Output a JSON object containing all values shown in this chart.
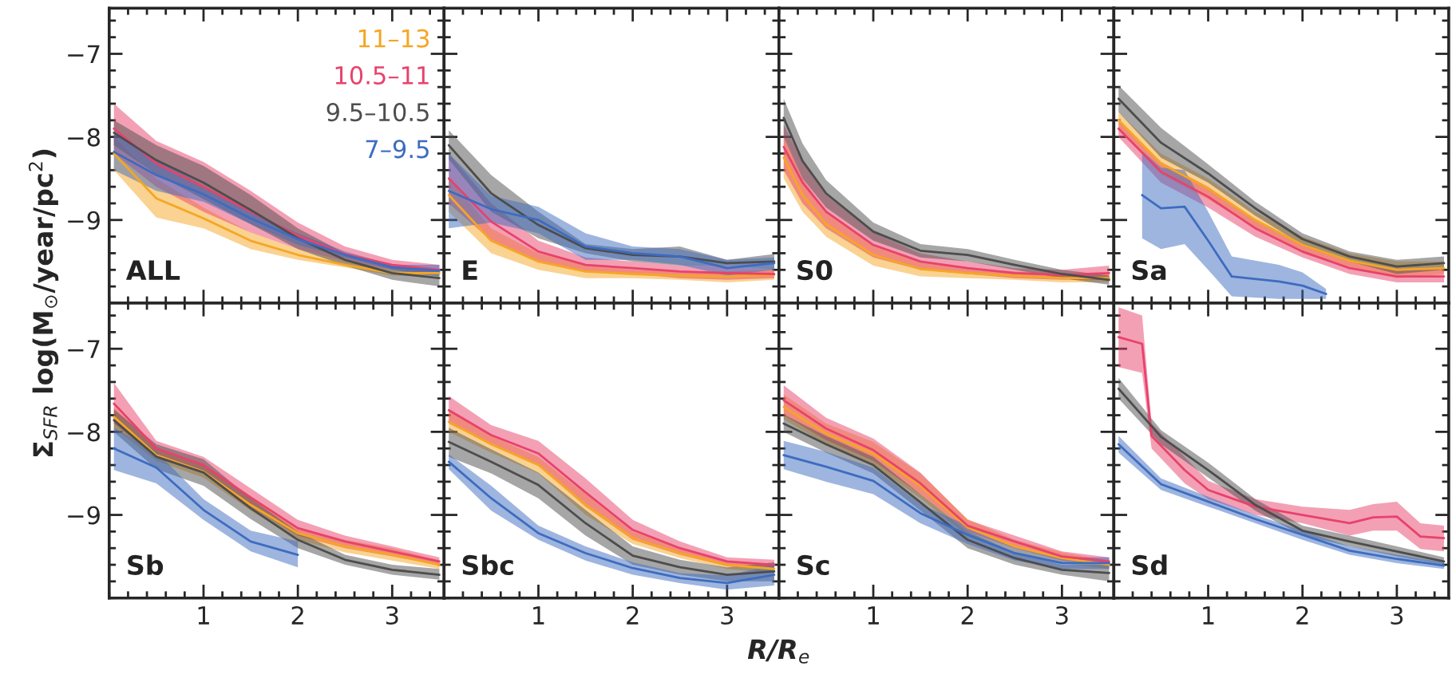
{
  "chart_data": [
    {
      "type": "line",
      "title": "ALL",
      "ylabel": "Σ$_{SFR}$ log(M$_{⊙}$/year/pc$^{2}$)",
      "legend": "top right",
      "xlim": [
        0,
        3.55
      ],
      "ylim": [
        -10.0,
        -6.45
      ],
      "xticks": [
        1,
        2,
        3
      ],
      "yticks": [
        {
          "value": -7,
          "label": "−7"
        },
        {
          "value": -8,
          "label": "−8"
        },
        {
          "value": -9,
          "label": "−9"
        }
      ],
      "tick_labels": "y",
      "series": [
        {
          "name": "11–13",
          "color": "#f5a623",
          "x": [
            0.05,
            0.5,
            1,
            1.5,
            2,
            2.5,
            3,
            3.5
          ],
          "values": [
            -8.2,
            -8.74,
            -8.98,
            -9.25,
            -9.42,
            -9.54,
            -9.64,
            -9.64
          ],
          "lower": [
            -8.4,
            -8.97,
            -9.1,
            -9.35,
            -9.48,
            -9.57,
            -9.67,
            -9.67
          ],
          "upper": [
            -8.0,
            -8.5,
            -8.85,
            -9.15,
            -9.35,
            -9.5,
            -9.6,
            -9.6
          ]
        },
        {
          "name": "10.5–11",
          "color": "#e8426b",
          "x": [
            0.05,
            0.5,
            1,
            1.5,
            2,
            2.5,
            3,
            3.5
          ],
          "values": [
            -7.9,
            -8.32,
            -8.6,
            -8.9,
            -9.19,
            -9.41,
            -9.54,
            -9.6
          ],
          "lower": [
            -8.2,
            -8.6,
            -8.9,
            -9.15,
            -9.35,
            -9.5,
            -9.6,
            -9.65
          ],
          "upper": [
            -7.6,
            -8.05,
            -8.3,
            -8.65,
            -9.03,
            -9.32,
            -9.48,
            -9.54
          ]
        },
        {
          "name": "9.5–10.5",
          "color": "#4d4d4d",
          "x": [
            0.05,
            0.5,
            1,
            1.5,
            2,
            2.5,
            3,
            3.5
          ],
          "values": [
            -7.95,
            -8.28,
            -8.55,
            -8.88,
            -9.22,
            -9.48,
            -9.64,
            -9.7
          ],
          "lower": [
            -8.1,
            -8.45,
            -8.75,
            -9.05,
            -9.35,
            -9.55,
            -9.72,
            -9.8
          ],
          "upper": [
            -7.8,
            -8.1,
            -8.35,
            -8.7,
            -9.1,
            -9.4,
            -9.55,
            -9.6
          ]
        },
        {
          "name": "7–9.5",
          "color": "#3d6cc0",
          "x": [
            0.05,
            0.5,
            1,
            1.5,
            2,
            2.5,
            3,
            3.5
          ],
          "values": [
            -8.18,
            -8.46,
            -8.69,
            -8.98,
            -9.23,
            -9.42,
            -9.57,
            -9.61
          ],
          "lower": [
            -8.4,
            -8.65,
            -8.78,
            -9.05,
            -9.3,
            -9.45,
            -9.6,
            -9.68
          ],
          "upper": [
            -7.95,
            -8.27,
            -8.59,
            -8.9,
            -9.16,
            -9.38,
            -9.54,
            -9.54
          ]
        }
      ]
    },
    {
      "type": "line",
      "title": "E",
      "xlim": [
        0,
        3.55
      ],
      "ylim": [
        -10.0,
        -6.45
      ],
      "xticks": [
        1,
        2,
        3
      ],
      "yticks": [
        {
          "value": -7,
          "label": null
        },
        {
          "value": -8,
          "label": null
        },
        {
          "value": -9,
          "label": null
        }
      ],
      "tick_labels": false,
      "series": [
        {
          "color": "#f5a623",
          "x": [
            0.05,
            0.5,
            1,
            1.5,
            2,
            2.5,
            3,
            3.5
          ],
          "values": [
            -8.7,
            -9.25,
            -9.5,
            -9.62,
            -9.65,
            -9.67,
            -9.68,
            -9.66
          ],
          "lower": [
            -8.9,
            -9.4,
            -9.6,
            -9.7,
            -9.7,
            -9.72,
            -9.75,
            -9.72
          ],
          "upper": [
            -8.5,
            -9.1,
            -9.4,
            -9.55,
            -9.6,
            -9.62,
            -9.62,
            -9.6
          ]
        },
        {
          "color": "#e8426b",
          "x": [
            0.05,
            0.5,
            1,
            1.5,
            2,
            2.5,
            3,
            3.5
          ],
          "values": [
            -8.5,
            -9.02,
            -9.38,
            -9.54,
            -9.58,
            -9.62,
            -9.64,
            -9.65
          ],
          "lower": [
            -8.8,
            -9.25,
            -9.5,
            -9.62,
            -9.65,
            -9.7,
            -9.72,
            -9.7
          ],
          "upper": [
            -8.2,
            -8.8,
            -9.25,
            -9.45,
            -9.5,
            -9.55,
            -9.55,
            -9.6
          ]
        },
        {
          "color": "#4d4d4d",
          "x": [
            0.05,
            0.5,
            1,
            1.5,
            2,
            2.5,
            3,
            3.5
          ],
          "values": [
            -8.1,
            -8.68,
            -9.06,
            -9.34,
            -9.42,
            -9.44,
            -9.52,
            -9.5
          ],
          "lower": [
            -8.27,
            -8.9,
            -9.22,
            -9.4,
            -9.5,
            -9.55,
            -9.55,
            -9.6
          ],
          "upper": [
            -7.92,
            -8.46,
            -8.9,
            -9.29,
            -9.35,
            -9.32,
            -9.48,
            -9.41
          ]
        },
        {
          "color": "#3d6cc0",
          "x": [
            0.05,
            0.5,
            1,
            1.5,
            2,
            2.5,
            3,
            3.5
          ],
          "values": [
            -8.65,
            -8.87,
            -9.0,
            -9.32,
            -9.4,
            -9.44,
            -9.58,
            -9.52
          ],
          "lower": [
            -9.1,
            -9.03,
            -9.16,
            -9.48,
            -9.48,
            -9.54,
            -9.67,
            -9.6
          ],
          "upper": [
            -8.2,
            -8.71,
            -8.84,
            -9.16,
            -9.32,
            -9.35,
            -9.48,
            -9.45
          ]
        }
      ]
    },
    {
      "type": "line",
      "title": "S0",
      "xlim": [
        0,
        3.55
      ],
      "ylim": [
        -10.0,
        -6.45
      ],
      "xticks": [
        1,
        2,
        3
      ],
      "yticks": [
        {
          "value": -7,
          "label": null
        },
        {
          "value": -8,
          "label": null
        },
        {
          "value": -9,
          "label": null
        }
      ],
      "tick_labels": false,
      "series": [
        {
          "color": "#f5a623",
          "x": [
            0.05,
            0.25,
            0.5,
            1,
            1.5,
            2,
            2.5,
            3,
            3.5
          ],
          "values": [
            -8.25,
            -8.7,
            -9.05,
            -9.42,
            -9.59,
            -9.64,
            -9.67,
            -9.7,
            -9.7
          ],
          "lower": [
            -8.5,
            -8.9,
            -9.2,
            -9.55,
            -9.68,
            -9.7,
            -9.72,
            -9.75,
            -9.75
          ],
          "upper": [
            -8.0,
            -8.5,
            -8.9,
            -9.3,
            -9.5,
            -9.58,
            -9.62,
            -9.65,
            -9.65
          ]
        },
        {
          "color": "#e8426b",
          "x": [
            0.05,
            0.25,
            0.5,
            1,
            1.5,
            2,
            2.5,
            3,
            3.5
          ],
          "values": [
            -8.12,
            -8.55,
            -8.9,
            -9.3,
            -9.5,
            -9.58,
            -9.64,
            -9.66,
            -9.64
          ],
          "lower": [
            -8.4,
            -8.8,
            -9.1,
            -9.45,
            -9.6,
            -9.65,
            -9.7,
            -9.72,
            -9.72
          ],
          "upper": [
            -7.85,
            -8.3,
            -8.7,
            -9.15,
            -9.4,
            -9.5,
            -9.58,
            -9.6,
            -9.55
          ]
        },
        {
          "color": "#4d4d4d",
          "x": [
            0.05,
            0.25,
            0.5,
            1,
            1.5,
            2,
            2.5,
            3,
            3.5
          ],
          "values": [
            -7.77,
            -8.29,
            -8.68,
            -9.14,
            -9.37,
            -9.42,
            -9.54,
            -9.65,
            -9.72
          ],
          "lower": [
            -8.0,
            -8.5,
            -8.85,
            -9.25,
            -9.45,
            -9.5,
            -9.6,
            -9.7,
            -9.78
          ],
          "upper": [
            -7.54,
            -8.08,
            -8.52,
            -9.03,
            -9.29,
            -9.35,
            -9.48,
            -9.6,
            -9.67
          ]
        }
      ]
    },
    {
      "type": "line",
      "title": "Sa",
      "xlim": [
        0,
        3.55
      ],
      "ylim": [
        -10.0,
        -6.45
      ],
      "xticks": [
        1,
        2,
        3
      ],
      "yticks": [
        {
          "value": -7,
          "label": null
        },
        {
          "value": -8,
          "label": null
        },
        {
          "value": -9,
          "label": null
        }
      ],
      "tick_labels": false,
      "series": [
        {
          "color": "#f5a623",
          "x": [
            0.05,
            0.5,
            1,
            1.5,
            2,
            2.5,
            3,
            3.5
          ],
          "values": [
            -7.8,
            -8.32,
            -8.62,
            -9.0,
            -9.3,
            -9.49,
            -9.6,
            -9.58
          ],
          "lower": [
            -7.9,
            -8.45,
            -8.75,
            -9.1,
            -9.4,
            -9.58,
            -9.7,
            -9.65
          ],
          "upper": [
            -7.7,
            -8.2,
            -8.5,
            -8.9,
            -9.2,
            -9.4,
            -9.5,
            -9.5
          ]
        },
        {
          "color": "#e8426b",
          "x": [
            0.05,
            0.5,
            1,
            1.5,
            2,
            2.5,
            3,
            3.5
          ],
          "values": [
            -7.9,
            -8.42,
            -8.72,
            -9.1,
            -9.38,
            -9.58,
            -9.68,
            -9.68
          ],
          "lower": [
            -8.0,
            -8.55,
            -8.85,
            -9.2,
            -9.45,
            -9.65,
            -9.75,
            -9.75
          ],
          "upper": [
            -7.8,
            -8.3,
            -8.6,
            -9.0,
            -9.3,
            -9.5,
            -9.6,
            -9.6
          ]
        },
        {
          "color": "#4d4d4d",
          "x": [
            0.05,
            0.5,
            1,
            1.5,
            2,
            2.5,
            3,
            3.5
          ],
          "values": [
            -7.54,
            -8.07,
            -8.44,
            -8.86,
            -9.23,
            -9.44,
            -9.56,
            -9.52
          ],
          "lower": [
            -7.7,
            -8.25,
            -8.55,
            -8.95,
            -9.3,
            -9.5,
            -9.65,
            -9.6
          ],
          "upper": [
            -7.38,
            -7.89,
            -8.33,
            -8.78,
            -9.16,
            -9.38,
            -9.48,
            -9.44
          ]
        },
        {
          "color": "#3d6cc0",
          "x": [
            0.3,
            0.5,
            0.75,
            1.0,
            1.25,
            1.75,
            2.0,
            2.25
          ],
          "values": [
            -8.7,
            -8.86,
            -8.84,
            -9.25,
            -9.68,
            -9.74,
            -9.79,
            -9.89
          ],
          "lower": [
            -9.22,
            -9.35,
            -9.29,
            -9.6,
            -9.92,
            -9.95,
            -9.95,
            -9.95
          ],
          "upper": [
            -8.17,
            -8.37,
            -8.4,
            -8.9,
            -9.44,
            -9.54,
            -9.63,
            -9.83
          ]
        }
      ]
    },
    {
      "type": "line",
      "title": "Sb",
      "xlim": [
        0,
        3.55
      ],
      "ylim": [
        -10.0,
        -6.45
      ],
      "xticks": [
        1,
        2,
        3
      ],
      "yticks": [
        {
          "value": -7,
          "label": "−7"
        },
        {
          "value": -8,
          "label": "−8"
        },
        {
          "value": -9,
          "label": "−9"
        }
      ],
      "series": [
        {
          "color": "#f5a623",
          "x": [
            0.05,
            0.5,
            1,
            1.5,
            2,
            2.5,
            3,
            3.5
          ],
          "values": [
            -7.82,
            -8.28,
            -8.48,
            -8.88,
            -9.22,
            -9.38,
            -9.48,
            -9.6
          ],
          "lower": [
            -7.95,
            -8.35,
            -8.55,
            -8.95,
            -9.3,
            -9.45,
            -9.55,
            -9.65
          ],
          "upper": [
            -7.7,
            -8.2,
            -8.4,
            -8.8,
            -9.15,
            -9.3,
            -9.4,
            -9.55
          ]
        },
        {
          "color": "#e8426b",
          "x": [
            0.05,
            0.5,
            1,
            1.5,
            2,
            2.5,
            3,
            3.5
          ],
          "values": [
            -7.66,
            -8.2,
            -8.4,
            -8.79,
            -9.16,
            -9.32,
            -9.44,
            -9.56
          ],
          "lower": [
            -7.9,
            -8.3,
            -8.5,
            -8.9,
            -9.25,
            -9.4,
            -9.5,
            -9.6
          ],
          "upper": [
            -7.41,
            -8.11,
            -8.3,
            -8.68,
            -9.06,
            -9.25,
            -9.38,
            -9.51
          ]
        },
        {
          "color": "#4d4d4d",
          "x": [
            0.05,
            0.5,
            1,
            1.5,
            2,
            2.5,
            3,
            3.5
          ],
          "values": [
            -7.86,
            -8.3,
            -8.49,
            -8.92,
            -9.3,
            -9.54,
            -9.66,
            -9.72
          ],
          "lower": [
            -8.0,
            -8.45,
            -8.65,
            -9.05,
            -9.4,
            -9.6,
            -9.72,
            -9.78
          ],
          "upper": [
            -7.73,
            -8.15,
            -8.33,
            -8.8,
            -9.2,
            -9.48,
            -9.6,
            -9.65
          ]
        },
        {
          "color": "#3d6cc0",
          "x": [
            0.05,
            0.5,
            1,
            1.5,
            2
          ],
          "values": [
            -8.2,
            -8.43,
            -8.94,
            -9.32,
            -9.48
          ],
          "lower": [
            -8.46,
            -8.62,
            -9.06,
            -9.44,
            -9.63
          ],
          "upper": [
            -7.95,
            -8.24,
            -8.81,
            -9.19,
            -9.32
          ]
        }
      ]
    },
    {
      "type": "line",
      "title": "Sbc",
      "xlim": [
        0,
        3.55
      ],
      "ylim": [
        -10.0,
        -6.45
      ],
      "xticks": [
        1,
        2,
        3
      ],
      "yticks": [
        {
          "value": -7,
          "label": null
        },
        {
          "value": -8,
          "label": null
        },
        {
          "value": -9,
          "label": null
        }
      ],
      "tick_labels": "x",
      "series": [
        {
          "color": "#f5a623",
          "x": [
            0.05,
            0.5,
            1,
            1.5,
            2,
            2.5,
            3,
            3.5
          ],
          "values": [
            -7.88,
            -8.15,
            -8.4,
            -8.88,
            -9.28,
            -9.46,
            -9.6,
            -9.65
          ],
          "lower": [
            -8.0,
            -8.25,
            -8.5,
            -9.0,
            -9.35,
            -9.52,
            -9.65,
            -9.7
          ],
          "upper": [
            -7.75,
            -8.05,
            -8.3,
            -8.75,
            -9.2,
            -9.4,
            -9.55,
            -9.6
          ]
        },
        {
          "color": "#e8426b",
          "x": [
            0.05,
            0.5,
            1,
            1.5,
            2,
            2.5,
            3,
            3.5
          ],
          "values": [
            -7.74,
            -8.04,
            -8.26,
            -8.73,
            -9.18,
            -9.4,
            -9.56,
            -9.6
          ],
          "lower": [
            -7.9,
            -8.15,
            -8.4,
            -8.9,
            -9.3,
            -9.48,
            -9.62,
            -9.65
          ],
          "upper": [
            -7.57,
            -7.92,
            -8.11,
            -8.56,
            -9.06,
            -9.32,
            -9.51,
            -9.54
          ]
        },
        {
          "color": "#4d4d4d",
          "x": [
            0.05,
            0.5,
            1,
            1.5,
            2,
            2.5,
            3,
            3.5
          ],
          "values": [
            -8.12,
            -8.36,
            -8.64,
            -9.1,
            -9.49,
            -9.63,
            -9.72,
            -9.68
          ],
          "lower": [
            -8.3,
            -8.5,
            -8.8,
            -9.25,
            -9.6,
            -9.72,
            -9.8,
            -9.8
          ],
          "upper": [
            -7.95,
            -8.21,
            -8.49,
            -8.94,
            -9.38,
            -9.54,
            -9.63,
            -9.57
          ]
        },
        {
          "color": "#3d6cc0",
          "x": [
            0.05,
            0.5,
            1,
            1.5,
            2,
            2.5,
            3,
            3.5
          ],
          "values": [
            -8.36,
            -8.8,
            -9.22,
            -9.46,
            -9.64,
            -9.76,
            -9.82,
            -9.72
          ],
          "lower": [
            -8.45,
            -8.95,
            -9.3,
            -9.55,
            -9.72,
            -9.82,
            -9.9,
            -9.85
          ],
          "upper": [
            -8.27,
            -8.65,
            -9.13,
            -9.38,
            -9.57,
            -9.7,
            -9.73,
            -9.6
          ]
        }
      ]
    },
    {
      "type": "line",
      "title": "Sc",
      "xlabel": "R/R$_{e}$",
      "xlim": [
        0,
        3.55
      ],
      "ylim": [
        -10.0,
        -6.45
      ],
      "xticks": [
        1,
        2,
        3
      ],
      "yticks": [
        {
          "value": -7,
          "label": null
        },
        {
          "value": -8,
          "label": null
        },
        {
          "value": -9,
          "label": null
        }
      ],
      "tick_labels": "x",
      "series": [
        {
          "color": "#f5a623",
          "x": [
            0.05,
            0.5,
            1,
            1.5,
            2,
            2.5,
            3,
            3.5
          ],
          "values": [
            -7.7,
            -8.02,
            -8.26,
            -8.65,
            -9.15,
            -9.38,
            -9.52,
            -9.6
          ],
          "lower": [
            -7.85,
            -8.15,
            -8.4,
            -8.8,
            -9.25,
            -9.45,
            -9.58,
            -9.65
          ],
          "upper": [
            -7.55,
            -7.9,
            -8.12,
            -8.5,
            -9.05,
            -9.3,
            -9.45,
            -9.55
          ]
        },
        {
          "color": "#e8426b",
          "x": [
            0.05,
            0.5,
            1,
            1.5,
            2,
            2.5,
            3,
            3.5
          ],
          "values": [
            -7.62,
            -7.96,
            -8.22,
            -8.62,
            -9.13,
            -9.32,
            -9.5,
            -9.56
          ],
          "lower": [
            -7.8,
            -8.1,
            -8.35,
            -8.75,
            -9.2,
            -9.4,
            -9.55,
            -9.6
          ],
          "upper": [
            -7.44,
            -7.83,
            -8.08,
            -8.49,
            -9.06,
            -9.25,
            -9.44,
            -9.51
          ]
        },
        {
          "color": "#4d4d4d",
          "x": [
            0.05,
            0.5,
            1,
            1.5,
            2,
            2.5,
            3,
            3.5
          ],
          "values": [
            -7.9,
            -8.15,
            -8.4,
            -8.85,
            -9.3,
            -9.52,
            -9.66,
            -9.7
          ],
          "lower": [
            -8.0,
            -8.25,
            -8.5,
            -8.95,
            -9.4,
            -9.6,
            -9.72,
            -9.8
          ],
          "upper": [
            -7.79,
            -8.05,
            -8.3,
            -8.75,
            -9.2,
            -9.45,
            -9.6,
            -9.6
          ]
        },
        {
          "color": "#3d6cc0",
          "x": [
            0.05,
            0.5,
            1,
            1.5,
            2,
            2.5,
            3,
            3.5
          ],
          "values": [
            -8.28,
            -8.42,
            -8.59,
            -8.98,
            -9.24,
            -9.46,
            -9.58,
            -9.58
          ],
          "lower": [
            -8.45,
            -8.6,
            -8.75,
            -9.1,
            -9.35,
            -9.55,
            -9.65,
            -9.65
          ],
          "upper": [
            -8.11,
            -8.24,
            -8.43,
            -8.87,
            -9.13,
            -9.38,
            -9.51,
            -9.51
          ]
        }
      ]
    },
    {
      "type": "line",
      "title": "Sd",
      "xlim": [
        0,
        3.55
      ],
      "ylim": [
        -10.0,
        -6.45
      ],
      "xticks": [
        1,
        2,
        3
      ],
      "yticks": [
        {
          "value": -7,
          "label": null
        },
        {
          "value": -8,
          "label": null
        },
        {
          "value": -9,
          "label": null
        }
      ],
      "tick_labels": "x",
      "series": [
        {
          "color": "#e8426b",
          "x": [
            0.05,
            0.3,
            0.4,
            0.75,
            1,
            1.5,
            2,
            2.5,
            2.75,
            3,
            3.25,
            3.5
          ],
          "values": [
            -6.86,
            -6.94,
            -8.05,
            -8.46,
            -8.7,
            -8.9,
            -9.0,
            -9.1,
            -9.03,
            -9.02,
            -9.26,
            -9.28
          ],
          "lower": [
            -7.22,
            -7.29,
            -8.2,
            -8.62,
            -8.81,
            -9.0,
            -9.1,
            -9.25,
            -9.19,
            -9.19,
            -9.41,
            -9.44
          ],
          "upper": [
            -6.5,
            -6.6,
            -7.9,
            -8.3,
            -8.59,
            -8.81,
            -8.9,
            -8.94,
            -8.87,
            -8.84,
            -9.1,
            -9.13
          ]
        },
        {
          "color": "#4d4d4d",
          "x": [
            0.05,
            0.5,
            1,
            1.5,
            2,
            2.5,
            3,
            3.5
          ],
          "values": [
            -7.48,
            -8.06,
            -8.46,
            -8.88,
            -9.19,
            -9.32,
            -9.44,
            -9.56
          ],
          "lower": [
            -7.6,
            -8.15,
            -8.55,
            -8.95,
            -9.25,
            -9.38,
            -9.5,
            -9.6
          ],
          "upper": [
            -7.35,
            -7.98,
            -8.37,
            -8.81,
            -9.13,
            -9.25,
            -9.38,
            -9.51
          ]
        },
        {
          "color": "#3d6cc0",
          "x": [
            0.05,
            0.5,
            1,
            1.5,
            2,
            2.5,
            3,
            3.5
          ],
          "values": [
            -8.15,
            -8.63,
            -8.84,
            -9.05,
            -9.24,
            -9.43,
            -9.53,
            -9.61
          ],
          "lower": [
            -8.25,
            -8.7,
            -8.9,
            -9.1,
            -9.3,
            -9.48,
            -9.58,
            -9.65
          ],
          "upper": [
            -8.05,
            -8.56,
            -8.78,
            -9.0,
            -9.19,
            -9.38,
            -9.48,
            -9.57
          ]
        }
      ]
    }
  ]
}
